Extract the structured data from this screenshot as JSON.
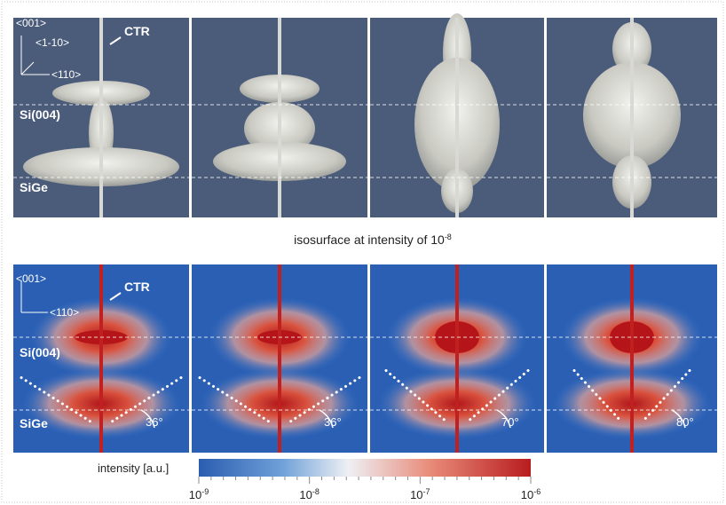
{
  "top_panel": {
    "axes": [
      "<001>",
      "<1-10>",
      "<110>"
    ],
    "ctr": "CTR",
    "labels": [
      "Si(004)",
      "SiGe"
    ]
  },
  "caption": {
    "text": "isosurface at intensity of 10",
    "exponent": "-8"
  },
  "bottom_panel": {
    "axes": [
      "<001>",
      "<110>"
    ],
    "ctr": "CTR",
    "labels": [
      "Si(004)",
      "SiGe"
    ],
    "angles": [
      "36°",
      "36°",
      "70°",
      "80°"
    ]
  },
  "colorbar": {
    "label": "intensity [a.u.]",
    "ticks": [
      {
        "base": "10",
        "exponent": "-9"
      },
      {
        "base": "10",
        "exponent": "-8"
      },
      {
        "base": "10",
        "exponent": "-7"
      },
      {
        "base": "10",
        "exponent": "-6"
      }
    ]
  }
}
